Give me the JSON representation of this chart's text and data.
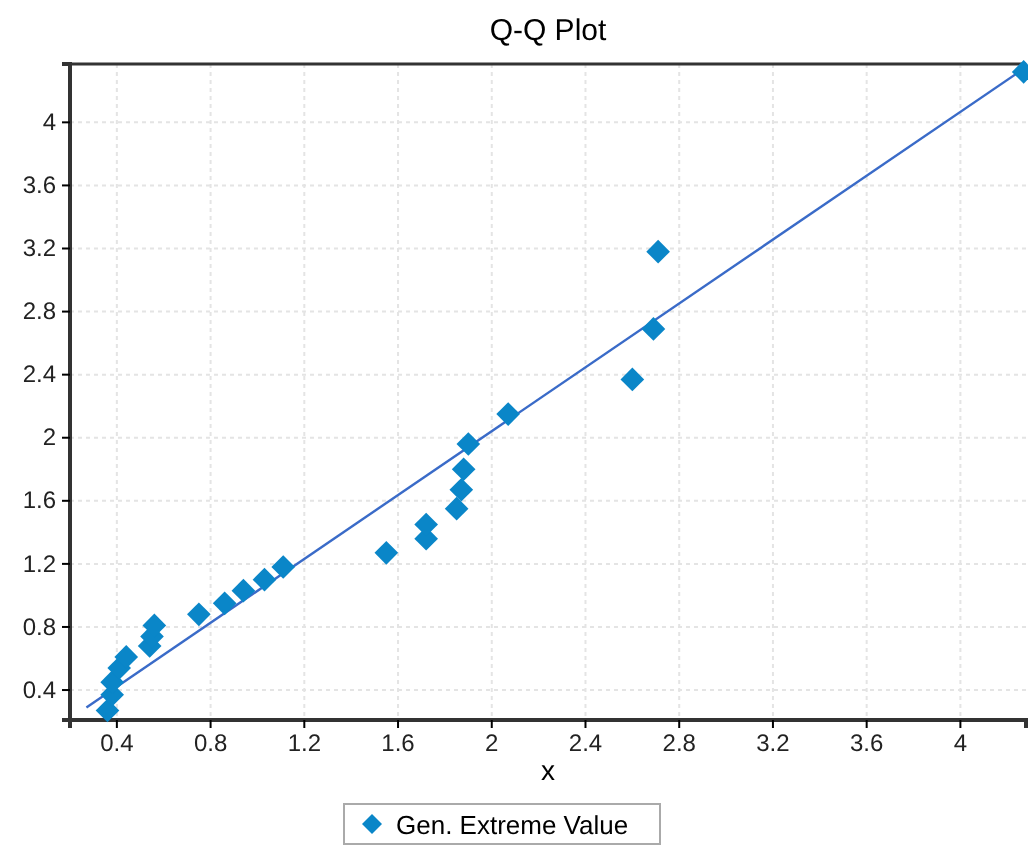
{
  "chart_data": {
    "type": "scatter",
    "title": "Q-Q Plot",
    "xlabel": "x",
    "xlim": [
      0.2,
      4.28
    ],
    "ylim": [
      0.21,
      4.37
    ],
    "xticks": [
      0.4,
      0.8,
      1.2,
      1.6,
      2,
      2.4,
      2.8,
      3.2,
      3.6,
      4
    ],
    "yticks": [
      0.4,
      0.8,
      1.2,
      1.6,
      2,
      2.4,
      2.8,
      3.2,
      3.6,
      4
    ],
    "grid": true,
    "legend": "bottom",
    "marker": "diamond",
    "series": [
      {
        "name": "Gen. Extreme Value",
        "color": "#0a86c8",
        "x": [
          0.36,
          0.38,
          0.38,
          0.41,
          0.44,
          0.54,
          0.55,
          0.56,
          0.75,
          0.86,
          0.94,
          1.03,
          1.11,
          1.55,
          1.72,
          1.72,
          1.85,
          1.87,
          1.88,
          1.9,
          2.07,
          2.6,
          2.69,
          2.71,
          4.27
        ],
        "values": [
          0.27,
          0.37,
          0.45,
          0.54,
          0.61,
          0.68,
          0.74,
          0.81,
          0.88,
          0.95,
          1.03,
          1.1,
          1.18,
          1.27,
          1.36,
          1.45,
          1.55,
          1.67,
          1.8,
          1.96,
          2.15,
          2.37,
          2.69,
          3.18,
          4.32
        ]
      },
      {
        "type": "line",
        "color": "#3a6bc8",
        "marker": "none",
        "x": [
          0.27,
          4.28
        ],
        "values": [
          0.29,
          4.35
        ]
      }
    ]
  }
}
